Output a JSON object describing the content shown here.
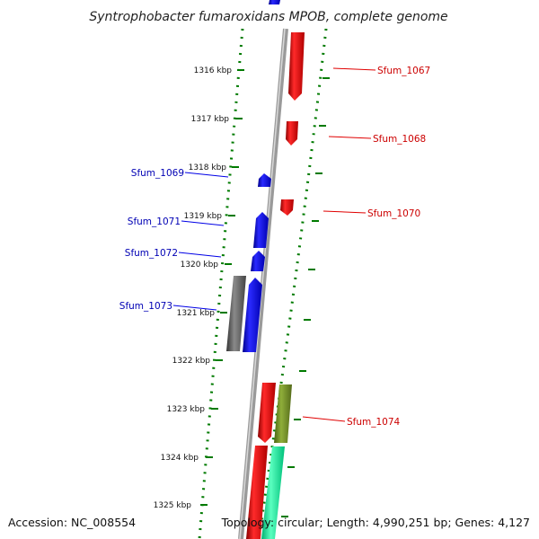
{
  "title": "Syntrophobacter fumaroxidans MPOB, complete genome",
  "ticks": [
    "1316 kbp",
    "1317 kbp",
    "1318 kbp",
    "1319 kbp",
    "1320 kbp",
    "1321 kbp",
    "1322 kbp",
    "1323 kbp",
    "1324 kbp",
    "1325 kbp"
  ],
  "genes_forward": [
    "Sfum_1067",
    "Sfum_1068",
    "Sfum_1070",
    "Sfum_1074"
  ],
  "genes_reverse": [
    "Sfum_1069",
    "Sfum_1071",
    "Sfum_1072",
    "Sfum_1073"
  ],
  "footer": {
    "accession": "Accession: NC_008554",
    "topology": "Topology: circular; Length: 4,990,251 bp; Genes: 4,127"
  },
  "colors": {
    "forward": "#e00000",
    "reverse": "#0000e6",
    "backbone": "#808080",
    "ruler": "#007a00",
    "olive": "#6b8e23",
    "teal": "#00e08a",
    "pseudo": "#555555"
  }
}
